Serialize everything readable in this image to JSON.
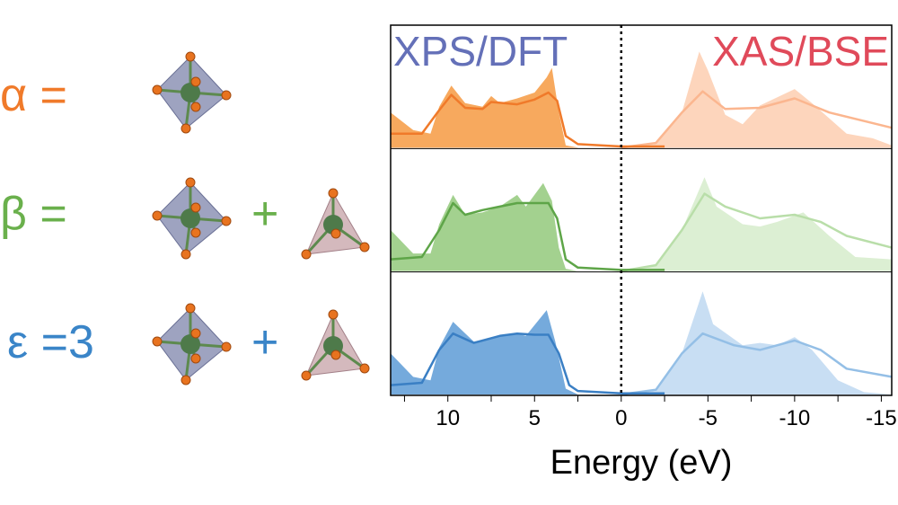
{
  "labels": [
    {
      "sym": "α =",
      "extra": "",
      "plus": "",
      "color": "#f07a2a",
      "tetra": false
    },
    {
      "sym": "β =",
      "extra": "",
      "plus": "+",
      "color": "#6ab04c",
      "tetra": true
    },
    {
      "sym": "ε =",
      "extra": "3",
      "plus": "+",
      "color": "#3a85c8",
      "tetra": true
    }
  ],
  "chart_data": {
    "type": "area",
    "xlabel": "Energy (eV)",
    "xlim": [
      13.3,
      -15.6
    ],
    "xticks": [
      10,
      5,
      0,
      -5,
      -10,
      -15
    ],
    "xtick_labels": [
      "10",
      "5",
      "0",
      "-5",
      "-10",
      "-15"
    ],
    "annotations": [
      {
        "text": "XPS/DFT",
        "color": "#6470b8"
      },
      {
        "text": "XAS/BSE",
        "color": "#e04a5a"
      }
    ],
    "vline": 0,
    "panels": [
      {
        "name": "alpha",
        "dark": "#f7a95e",
        "line": "#f07a2a",
        "light": "#fdd5bc",
        "lightline": "#fbb68f",
        "xps_fill": [
          [
            13.3,
            0.3
          ],
          [
            12,
            0.15
          ],
          [
            11,
            0.12
          ],
          [
            10.5,
            0.35
          ],
          [
            9.8,
            0.53
          ],
          [
            9,
            0.38
          ],
          [
            8,
            0.35
          ],
          [
            7.5,
            0.44
          ],
          [
            7,
            0.38
          ],
          [
            6,
            0.42
          ],
          [
            5,
            0.47
          ],
          [
            4.3,
            0.6
          ],
          [
            4.0,
            0.68
          ],
          [
            3.6,
            0.3
          ],
          [
            3.2,
            0.02
          ],
          [
            2.5,
            0
          ]
        ],
        "xps_line": [
          [
            13.3,
            0.12
          ],
          [
            11.5,
            0.12
          ],
          [
            10.5,
            0.32
          ],
          [
            9.8,
            0.45
          ],
          [
            9,
            0.34
          ],
          [
            8,
            0.33
          ],
          [
            7.5,
            0.39
          ],
          [
            6,
            0.37
          ],
          [
            5,
            0.41
          ],
          [
            4.2,
            0.47
          ],
          [
            3.7,
            0.4
          ],
          [
            3.2,
            0.1
          ],
          [
            2.5,
            0.03
          ],
          [
            0,
            0.01
          ],
          [
            -2.5,
            0.01
          ]
        ],
        "xas_fill": [
          [
            0,
            0
          ],
          [
            -2,
            0.03
          ],
          [
            -3.5,
            0.3
          ],
          [
            -4.5,
            0.82
          ],
          [
            -5,
            0.66
          ],
          [
            -6,
            0.28
          ],
          [
            -7,
            0.2
          ],
          [
            -8,
            0.36
          ],
          [
            -10,
            0.5
          ],
          [
            -11,
            0.38
          ],
          [
            -13,
            0.12
          ],
          [
            -14.5,
            0.08
          ],
          [
            -15.6,
            0.02
          ]
        ],
        "xas_line": [
          [
            0,
            0
          ],
          [
            -2,
            0.04
          ],
          [
            -3.5,
            0.3
          ],
          [
            -4.7,
            0.48
          ],
          [
            -6,
            0.33
          ],
          [
            -8,
            0.34
          ],
          [
            -10,
            0.42
          ],
          [
            -12,
            0.3
          ],
          [
            -15.6,
            0.17
          ]
        ]
      },
      {
        "name": "beta",
        "dark": "#a3d18f",
        "line": "#5ea548",
        "light": "#dcefd3",
        "lightline": "#b9dea9",
        "xps_fill": [
          [
            13.3,
            0.35
          ],
          [
            12,
            0.15
          ],
          [
            11,
            0.15
          ],
          [
            10.5,
            0.4
          ],
          [
            9.7,
            0.65
          ],
          [
            9,
            0.48
          ],
          [
            8,
            0.5
          ],
          [
            7,
            0.55
          ],
          [
            6,
            0.65
          ],
          [
            5.5,
            0.55
          ],
          [
            4.5,
            0.75
          ],
          [
            4.0,
            0.6
          ],
          [
            3.6,
            0.2
          ],
          [
            3.2,
            0.02
          ],
          [
            2.5,
            0
          ]
        ],
        "xps_line": [
          [
            13.3,
            0.1
          ],
          [
            11.5,
            0.12
          ],
          [
            10.5,
            0.35
          ],
          [
            9.7,
            0.58
          ],
          [
            9,
            0.48
          ],
          [
            8,
            0.52
          ],
          [
            7,
            0.55
          ],
          [
            6,
            0.58
          ],
          [
            5,
            0.58
          ],
          [
            4.2,
            0.58
          ],
          [
            3.7,
            0.45
          ],
          [
            3.2,
            0.1
          ],
          [
            2.5,
            0.03
          ],
          [
            0,
            0.01
          ],
          [
            -2.5,
            0.01
          ]
        ],
        "xas_fill": [
          [
            0,
            0
          ],
          [
            -2,
            0.05
          ],
          [
            -3.5,
            0.35
          ],
          [
            -4.8,
            0.8
          ],
          [
            -5.5,
            0.55
          ],
          [
            -7,
            0.4
          ],
          [
            -8,
            0.38
          ],
          [
            -9,
            0.42
          ],
          [
            -10.5,
            0.5
          ],
          [
            -12,
            0.3
          ],
          [
            -13.5,
            0.12
          ],
          [
            -15.6,
            0.1
          ]
        ],
        "xas_line": [
          [
            0,
            0
          ],
          [
            -2,
            0.05
          ],
          [
            -3.5,
            0.35
          ],
          [
            -4.8,
            0.66
          ],
          [
            -6,
            0.55
          ],
          [
            -8,
            0.45
          ],
          [
            -10,
            0.48
          ],
          [
            -11.5,
            0.42
          ],
          [
            -13,
            0.3
          ],
          [
            -15.6,
            0.2
          ]
        ]
      },
      {
        "name": "epsilon",
        "dark": "#75aadc",
        "line": "#3a7fc4",
        "light": "#c8def3",
        "lightline": "#94bfe6",
        "xps_fill": [
          [
            13.3,
            0.35
          ],
          [
            12,
            0.15
          ],
          [
            11,
            0.12
          ],
          [
            10.5,
            0.4
          ],
          [
            9.7,
            0.62
          ],
          [
            8.5,
            0.45
          ],
          [
            7,
            0.5
          ],
          [
            6,
            0.52
          ],
          [
            5.5,
            0.5
          ],
          [
            4.3,
            0.72
          ],
          [
            3.8,
            0.45
          ],
          [
            3.2,
            0.05
          ],
          [
            2.5,
            0
          ]
        ],
        "xps_line": [
          [
            13.3,
            0.08
          ],
          [
            11.5,
            0.1
          ],
          [
            10.5,
            0.38
          ],
          [
            9.7,
            0.52
          ],
          [
            8.5,
            0.44
          ],
          [
            7,
            0.5
          ],
          [
            6,
            0.52
          ],
          [
            5,
            0.51
          ],
          [
            4.2,
            0.51
          ],
          [
            3.6,
            0.35
          ],
          [
            3.0,
            0.08
          ],
          [
            2.5,
            0.03
          ],
          [
            0,
            0.01
          ],
          [
            -2.5,
            0.01
          ]
        ],
        "xas_fill": [
          [
            0,
            0
          ],
          [
            -2,
            0.03
          ],
          [
            -3.5,
            0.35
          ],
          [
            -4.7,
            0.88
          ],
          [
            -5.3,
            0.6
          ],
          [
            -7,
            0.42
          ],
          [
            -8,
            0.44
          ],
          [
            -9,
            0.42
          ],
          [
            -10,
            0.49
          ],
          [
            -11,
            0.38
          ],
          [
            -12.5,
            0.12
          ],
          [
            -14,
            0.02
          ],
          [
            -15.6,
            0
          ]
        ],
        "xas_line": [
          [
            0,
            0
          ],
          [
            -2,
            0.04
          ],
          [
            -3.5,
            0.35
          ],
          [
            -4.7,
            0.52
          ],
          [
            -6.5,
            0.42
          ],
          [
            -8,
            0.38
          ],
          [
            -10,
            0.46
          ],
          [
            -11.5,
            0.38
          ],
          [
            -13,
            0.22
          ],
          [
            -15.6,
            0.15
          ]
        ]
      }
    ]
  }
}
